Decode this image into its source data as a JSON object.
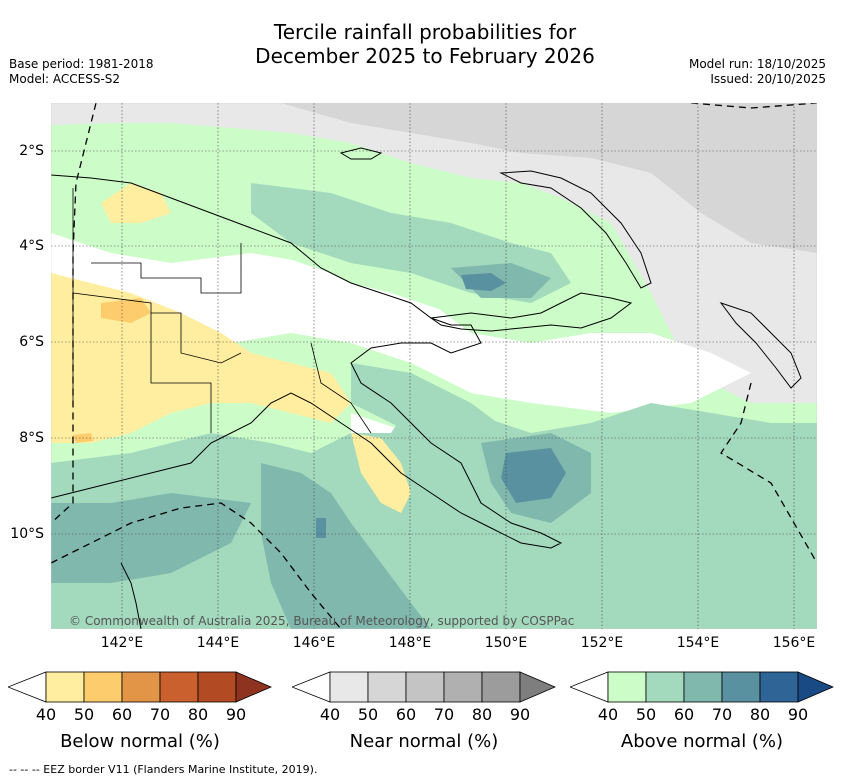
{
  "header": {
    "title_line1": "Tercile rainfall probabilities for",
    "title_line2": "December 2025 to February 2026",
    "base_period": "Base period: 1981-2018",
    "model": "Model: ACCESS-S2",
    "model_run": "Model run: 18/10/2025",
    "issued": "Issued: 20/10/2025"
  },
  "map": {
    "lat_labels": [
      "2°S",
      "4°S",
      "6°S",
      "8°S",
      "10°S"
    ],
    "lon_labels": [
      "142°E",
      "144°E",
      "146°E",
      "148°E",
      "150°E",
      "152°E",
      "154°E",
      "156°E"
    ],
    "copyright": "© Commonwealth of Australia 2025, Bureau of Meteorology, supported by COSPPac"
  },
  "legends": {
    "below": {
      "title": "Below normal (%)",
      "ticks": [
        "40",
        "50",
        "60",
        "70",
        "80",
        "90"
      ],
      "colors": [
        "#ffffff",
        "#ffeea0",
        "#fdcc6c",
        "#e29447",
        "#c9602e",
        "#b24a24",
        "#8e3320"
      ]
    },
    "near": {
      "title": "Near normal (%)",
      "ticks": [
        "40",
        "50",
        "60",
        "70",
        "80",
        "90"
      ],
      "colors": [
        "#ffffff",
        "#e8e8e8",
        "#d6d6d6",
        "#c4c4c4",
        "#b0b0b0",
        "#9c9c9c",
        "#7e7e7e"
      ]
    },
    "above": {
      "title": "Above normal (%)",
      "ticks": [
        "40",
        "50",
        "60",
        "70",
        "80",
        "90"
      ],
      "colors": [
        "#ffffff",
        "#ccfcc8",
        "#a3d9bc",
        "#80b8ad",
        "#5a91a1",
        "#2f6496",
        "#1a4a84"
      ]
    }
  },
  "footer": {
    "text": "--  --  -- EEZ border V11 (Flanders Marine Institute, 2019)."
  }
}
